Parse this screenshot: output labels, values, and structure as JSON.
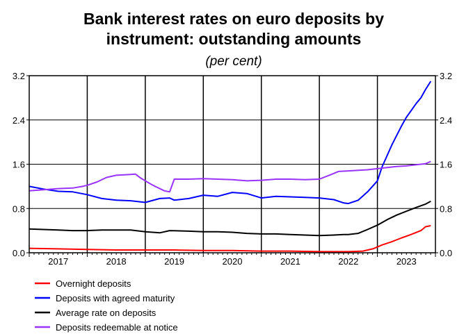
{
  "chart_data": {
    "type": "line",
    "title_line1": "Bank interest rates on euro deposits by",
    "title_line2": "instrument: outstanding amounts",
    "subtitle": "(per cent)",
    "ylim": [
      0,
      3.2
    ],
    "yticks": [
      "0.0",
      "0.8",
      "1.6",
      "2.4",
      "3.2"
    ],
    "xlim": [
      2016.5,
      2023.5
    ],
    "years": [
      "2017",
      "2018",
      "2019",
      "2020",
      "2021",
      "2022",
      "2023"
    ],
    "grid": true,
    "legend_position": "bottom-left",
    "series": [
      {
        "name": "Overnight deposits",
        "color": "#ff0000",
        "points": [
          [
            2016.5,
            0.08
          ],
          [
            2017.0,
            0.07
          ],
          [
            2017.5,
            0.06
          ],
          [
            2018.0,
            0.05
          ],
          [
            2018.5,
            0.05
          ],
          [
            2019.0,
            0.05
          ],
          [
            2019.5,
            0.04
          ],
          [
            2020.0,
            0.04
          ],
          [
            2020.5,
            0.03
          ],
          [
            2021.0,
            0.03
          ],
          [
            2021.5,
            0.02
          ],
          [
            2021.75,
            0.02
          ],
          [
            2022.0,
            0.02
          ],
          [
            2022.25,
            0.03
          ],
          [
            2022.42,
            0.07
          ],
          [
            2022.58,
            0.14
          ],
          [
            2022.75,
            0.2
          ],
          [
            2022.92,
            0.27
          ],
          [
            2023.08,
            0.33
          ],
          [
            2023.25,
            0.4
          ],
          [
            2023.33,
            0.47
          ],
          [
            2023.42,
            0.49
          ]
        ]
      },
      {
        "name": "Deposits with agreed maturity",
        "color": "#0000ff",
        "points": [
          [
            2016.5,
            1.2
          ],
          [
            2016.75,
            1.15
          ],
          [
            2017.0,
            1.11
          ],
          [
            2017.25,
            1.1
          ],
          [
            2017.5,
            1.05
          ],
          [
            2017.75,
            0.98
          ],
          [
            2018.0,
            0.95
          ],
          [
            2018.25,
            0.94
          ],
          [
            2018.5,
            0.91
          ],
          [
            2018.75,
            0.98
          ],
          [
            2018.92,
            0.99
          ],
          [
            2019.0,
            0.95
          ],
          [
            2019.25,
            0.98
          ],
          [
            2019.5,
            1.04
          ],
          [
            2019.75,
            1.02
          ],
          [
            2020.0,
            1.09
          ],
          [
            2020.25,
            1.07
          ],
          [
            2020.5,
            0.99
          ],
          [
            2020.75,
            1.02
          ],
          [
            2021.0,
            1.01
          ],
          [
            2021.25,
            1.0
          ],
          [
            2021.5,
            0.99
          ],
          [
            2021.75,
            0.96
          ],
          [
            2021.92,
            0.9
          ],
          [
            2022.0,
            0.89
          ],
          [
            2022.17,
            0.95
          ],
          [
            2022.33,
            1.1
          ],
          [
            2022.5,
            1.3
          ],
          [
            2022.58,
            1.55
          ],
          [
            2022.75,
            1.95
          ],
          [
            2022.92,
            2.3
          ],
          [
            2023.0,
            2.45
          ],
          [
            2023.17,
            2.7
          ],
          [
            2023.25,
            2.8
          ],
          [
            2023.33,
            2.95
          ],
          [
            2023.42,
            3.1
          ]
        ]
      },
      {
        "name": "Average rate on deposits",
        "color": "#000000",
        "points": [
          [
            2016.5,
            0.43
          ],
          [
            2016.75,
            0.42
          ],
          [
            2017.0,
            0.41
          ],
          [
            2017.25,
            0.4
          ],
          [
            2017.5,
            0.4
          ],
          [
            2017.75,
            0.41
          ],
          [
            2018.0,
            0.41
          ],
          [
            2018.25,
            0.41
          ],
          [
            2018.5,
            0.38
          ],
          [
            2018.75,
            0.36
          ],
          [
            2018.92,
            0.4
          ],
          [
            2019.25,
            0.39
          ],
          [
            2019.5,
            0.38
          ],
          [
            2019.75,
            0.38
          ],
          [
            2020.0,
            0.37
          ],
          [
            2020.25,
            0.35
          ],
          [
            2020.5,
            0.34
          ],
          [
            2020.75,
            0.34
          ],
          [
            2021.0,
            0.33
          ],
          [
            2021.25,
            0.32
          ],
          [
            2021.5,
            0.31
          ],
          [
            2021.75,
            0.32
          ],
          [
            2021.92,
            0.33
          ],
          [
            2022.0,
            0.33
          ],
          [
            2022.17,
            0.35
          ],
          [
            2022.33,
            0.42
          ],
          [
            2022.5,
            0.5
          ],
          [
            2022.67,
            0.6
          ],
          [
            2022.83,
            0.68
          ],
          [
            2023.0,
            0.75
          ],
          [
            2023.17,
            0.82
          ],
          [
            2023.33,
            0.88
          ],
          [
            2023.42,
            0.93
          ]
        ]
      },
      {
        "name": "Deposits redeemable at notice",
        "color": "#9933ff",
        "points": [
          [
            2016.5,
            1.12
          ],
          [
            2016.75,
            1.14
          ],
          [
            2017.0,
            1.16
          ],
          [
            2017.25,
            1.17
          ],
          [
            2017.42,
            1.2
          ],
          [
            2017.5,
            1.22
          ],
          [
            2017.67,
            1.28
          ],
          [
            2017.83,
            1.36
          ],
          [
            2018.0,
            1.4
          ],
          [
            2018.17,
            1.41
          ],
          [
            2018.33,
            1.42
          ],
          [
            2018.42,
            1.35
          ],
          [
            2018.58,
            1.25
          ],
          [
            2018.67,
            1.2
          ],
          [
            2018.83,
            1.12
          ],
          [
            2018.92,
            1.1
          ],
          [
            2019.0,
            1.33
          ],
          [
            2019.25,
            1.33
          ],
          [
            2019.5,
            1.34
          ],
          [
            2019.75,
            1.33
          ],
          [
            2020.0,
            1.32
          ],
          [
            2020.25,
            1.3
          ],
          [
            2020.5,
            1.31
          ],
          [
            2020.75,
            1.33
          ],
          [
            2021.0,
            1.33
          ],
          [
            2021.25,
            1.32
          ],
          [
            2021.5,
            1.33
          ],
          [
            2021.67,
            1.4
          ],
          [
            2021.83,
            1.47
          ],
          [
            2022.0,
            1.48
          ],
          [
            2022.17,
            1.49
          ],
          [
            2022.33,
            1.5
          ],
          [
            2022.5,
            1.52
          ],
          [
            2022.67,
            1.54
          ],
          [
            2022.83,
            1.56
          ],
          [
            2023.0,
            1.57
          ],
          [
            2023.17,
            1.59
          ],
          [
            2023.33,
            1.61
          ],
          [
            2023.42,
            1.65
          ]
        ]
      }
    ]
  }
}
